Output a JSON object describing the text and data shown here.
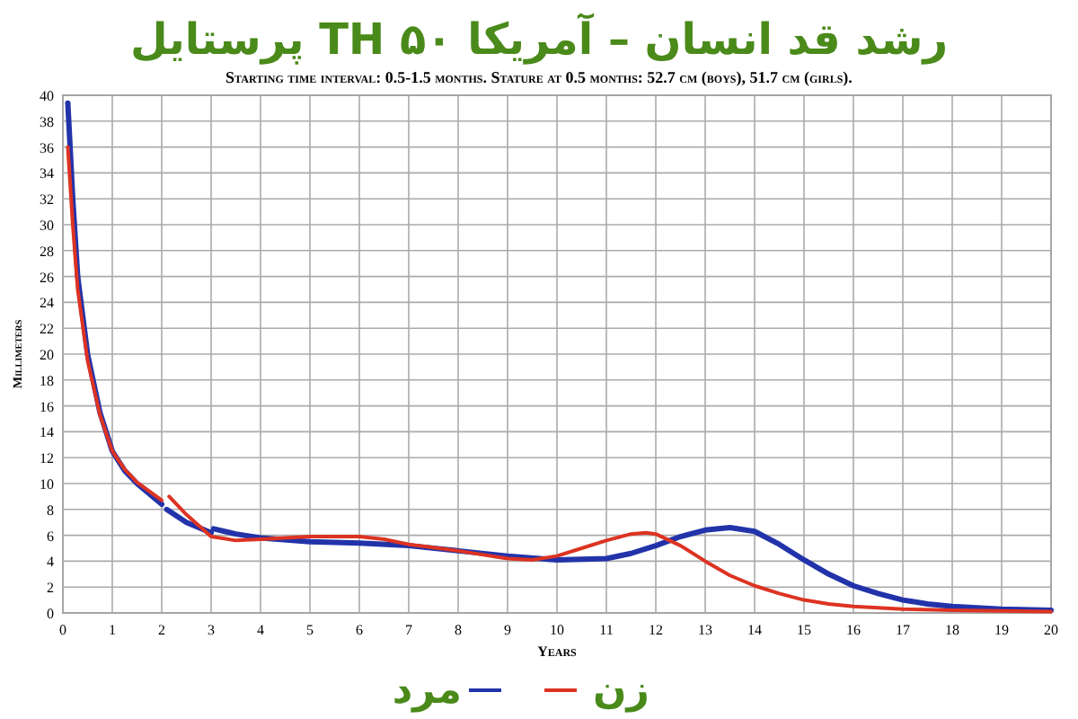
{
  "chart_data": {
    "type": "line",
    "title": "رشد قد انسان – آمریکا ۵۰ TH پرستایل",
    "subtitle": "Starting time interval: 0.5-1.5 months. Stature at 0.5 months: 52.7 cm (boys), 51.7 cm (girls).",
    "xlabel": "Years",
    "ylabel": "Millimeters",
    "xlim": [
      0,
      20
    ],
    "xticks": [
      0,
      1,
      2,
      3,
      4,
      5,
      6,
      7,
      8,
      9,
      10,
      11,
      12,
      13,
      14,
      15,
      16,
      17,
      18,
      19,
      20
    ],
    "ylim": [
      0,
      40
    ],
    "yticks": [
      0,
      2,
      4,
      6,
      8,
      10,
      12,
      14,
      16,
      18,
      20,
      22,
      24,
      26,
      28,
      30,
      32,
      34,
      36,
      38,
      40
    ],
    "grid": true,
    "legend": "bottom",
    "line_style": "solid",
    "marker": "none",
    "series": [
      {
        "name": "مرد",
        "color": "#2233aa",
        "x": [
          0.1,
          0.2,
          0.3,
          0.5,
          0.75,
          1,
          1.25,
          1.5,
          2,
          2.05,
          2.1,
          2.5,
          3,
          3.02,
          3.05,
          3.5,
          4,
          5,
          6,
          7,
          8,
          9,
          10,
          11,
          11.5,
          12,
          12.5,
          13,
          13.5,
          14,
          14.5,
          15,
          15.5,
          16,
          16.5,
          17,
          17.5,
          18,
          19,
          20
        ],
        "values": [
          39.4,
          32,
          26,
          20,
          15.5,
          12.5,
          11,
          10,
          8.4,
          null,
          8.0,
          7.0,
          6.2,
          null,
          6.5,
          6.1,
          5.8,
          5.5,
          5.4,
          5.2,
          4.8,
          4.4,
          4.1,
          4.2,
          4.6,
          5.2,
          5.9,
          6.4,
          6.6,
          6.3,
          5.3,
          4.1,
          3.0,
          2.1,
          1.5,
          1.0,
          0.7,
          0.5,
          0.3,
          0.2
        ]
      },
      {
        "name": "زن",
        "color": "#dd3322",
        "x": [
          0.1,
          0.2,
          0.3,
          0.5,
          0.75,
          1,
          1.25,
          1.5,
          2,
          2.08,
          2.15,
          2.5,
          3,
          3.5,
          4,
          5,
          6,
          6.5,
          7,
          8,
          9,
          9.5,
          10,
          10.5,
          11,
          11.5,
          11.8,
          12,
          12.5,
          13,
          13.5,
          14,
          14.5,
          15,
          15.5,
          16,
          17,
          18,
          20
        ],
        "values": [
          36,
          30,
          25,
          19.5,
          15.3,
          12.5,
          11.1,
          10.1,
          8.7,
          null,
          9.0,
          7.6,
          5.9,
          5.6,
          5.7,
          5.9,
          5.9,
          5.7,
          5.3,
          4.8,
          4.2,
          4.1,
          4.4,
          5.0,
          5.6,
          6.1,
          6.2,
          6.1,
          5.2,
          4.0,
          2.9,
          2.1,
          1.5,
          1.0,
          0.7,
          0.5,
          0.3,
          0.2,
          0.1
        ]
      }
    ]
  }
}
